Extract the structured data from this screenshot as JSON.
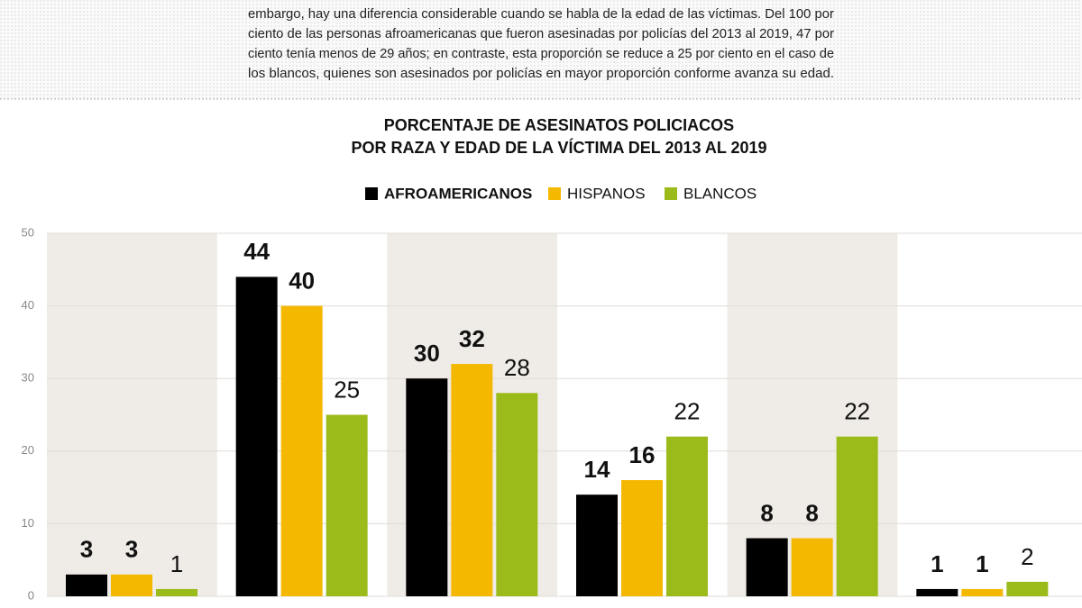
{
  "intro": {
    "lines": [
      "embargo, hay una diferencia considerable cuando se habla de la edad de las víctimas. Del 100 por",
      "ciento de las personas afroamericanas que fueron asesinadas por policías del 2013 al 2019, 47 por",
      "ciento tenía menos de 29 años; en contraste, esta proporción se reduce a 25 por ciento en el caso de",
      "los blancos, quienes son asesinados por policías en mayor proporción conforme avanza su edad."
    ]
  },
  "chart_data": {
    "type": "bar",
    "title": [
      "PORCENTAJE DE ASESINATOS POLICIACOS",
      "POR RAZA Y EDAD DE LA VÍCTIMA DEL 2013 AL 2019"
    ],
    "categories": [
      null,
      null,
      null,
      null,
      null,
      null
    ],
    "series": [
      {
        "name": "AFROAMERICANOS",
        "color": "#000000",
        "values": [
          3,
          44,
          30,
          14,
          8,
          1
        ]
      },
      {
        "name": "HISPANOS",
        "color": "#f5b800",
        "values": [
          3,
          40,
          32,
          16,
          8,
          1
        ]
      },
      {
        "name": "BLANCOS",
        "color": "#9bbb1a",
        "values": [
          1,
          25,
          28,
          22,
          22,
          2
        ]
      }
    ],
    "ylim": [
      0,
      50
    ],
    "yticks": [
      0,
      10,
      20,
      30,
      40,
      50
    ],
    "grid": true,
    "legend": "top"
  }
}
